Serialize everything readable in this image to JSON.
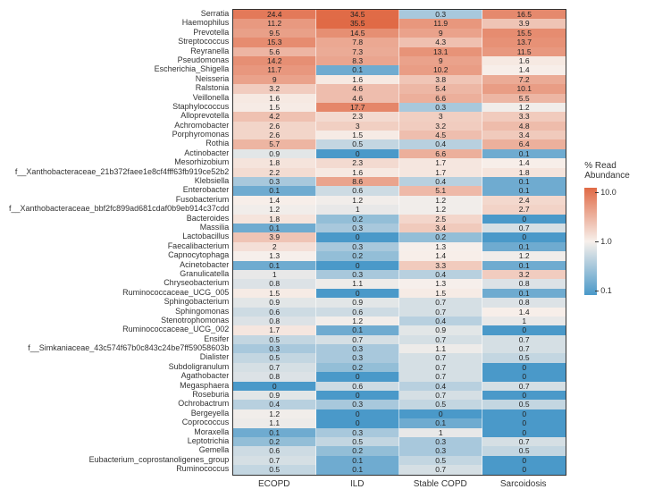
{
  "legend": {
    "title": "% Read\nAbundance",
    "ticks": [
      "10.0",
      "1.0",
      "0.1"
    ],
    "color_high": "#e06a46",
    "color_mid": "#f7f0eb",
    "color_low": "#4a99c9"
  },
  "columns": [
    "ECOPD",
    "ILD",
    "Stable COPD",
    "Sarcoidosis"
  ],
  "scale_log_min": 0.05,
  "scale_log_max": 35.5,
  "rows": [
    {
      "label": "Serratia",
      "v": [
        24.4,
        34.5,
        0.3,
        16.5
      ]
    },
    {
      "label": "Haemophilus",
      "v": [
        11.2,
        35.5,
        11.9,
        3.9
      ]
    },
    {
      "label": "Prevotella",
      "v": [
        9.5,
        14.5,
        9,
        15.5
      ]
    },
    {
      "label": "Streptococcus",
      "v": [
        15.3,
        7.8,
        4.3,
        13.7
      ]
    },
    {
      "label": "Reyranella",
      "v": [
        5.6,
        7.3,
        13.1,
        11.5
      ]
    },
    {
      "label": "Pseudomonas",
      "v": [
        14.2,
        8.3,
        9,
        1.6
      ]
    },
    {
      "label": "Escherichia_Shigella",
      "v": [
        11.7,
        0.1,
        10.2,
        1.4
      ]
    },
    {
      "label": "Neisseria",
      "v": [
        9,
        1.6,
        3.8,
        7.2
      ]
    },
    {
      "label": "Ralstonia",
      "v": [
        3.2,
        4.6,
        5.4,
        10.1
      ]
    },
    {
      "label": "Veillonella",
      "v": [
        1.6,
        4.6,
        6.6,
        5.5
      ]
    },
    {
      "label": "Staphylococcus",
      "v": [
        1.5,
        17.7,
        0.3,
        1.2
      ]
    },
    {
      "label": "Alloprevotella",
      "v": [
        4.2,
        2.3,
        3,
        3.3
      ]
    },
    {
      "label": "Achromobacter",
      "v": [
        2.6,
        3,
        3.2,
        4.8
      ]
    },
    {
      "label": "Porphyromonas",
      "v": [
        2.6,
        1.5,
        4.5,
        3.4
      ]
    },
    {
      "label": "Rothia",
      "v": [
        5.7,
        0.5,
        0.4,
        6.4
      ]
    },
    {
      "label": "Actinobacter",
      "v": [
        0.9,
        0,
        6.6,
        0.1
      ]
    },
    {
      "label": "Mesorhizobium",
      "v": [
        1.8,
        2.3,
        1.7,
        1.4
      ]
    },
    {
      "label": "f__Xanthobacteraceae_21b372faee1e8cf4fff63fb919ce52b2",
      "v": [
        2.2,
        1.6,
        1.7,
        1.8
      ]
    },
    {
      "label": "Klebsiella",
      "v": [
        0.3,
        8.6,
        0.4,
        0.1
      ]
    },
    {
      "label": "Enterobacter",
      "v": [
        0.1,
        0.6,
        5.1,
        0.1
      ]
    },
    {
      "label": "Fusobacterium",
      "v": [
        1.4,
        1.2,
        1.2,
        2.4
      ]
    },
    {
      "label": "f__Xanthobacteraceae_bbf2fc899ad681cdaf0b9eb914c37cdd",
      "v": [
        1.2,
        1,
        1.2,
        2.7
      ]
    },
    {
      "label": "Bacteroides",
      "v": [
        1.8,
        0.2,
        2.5,
        0
      ]
    },
    {
      "label": "Massilia",
      "v": [
        0.1,
        0.3,
        3.4,
        0.7
      ]
    },
    {
      "label": "Lactobacillus",
      "v": [
        3.9,
        0,
        0.2,
        0
      ]
    },
    {
      "label": "Faecalibacterium",
      "v": [
        2,
        0.3,
        1.3,
        0.1
      ]
    },
    {
      "label": "Capnocytophaga",
      "v": [
        1.3,
        0.2,
        1.4,
        1.2
      ]
    },
    {
      "label": "Acinetobacter",
      "v": [
        0.1,
        0,
        3.3,
        0.1
      ]
    },
    {
      "label": "Granulicatella",
      "v": [
        1,
        0.3,
        0.4,
        3.2
      ]
    },
    {
      "label": "Chryseobacterium",
      "v": [
        0.8,
        1.1,
        1.3,
        0.8
      ]
    },
    {
      "label": "Ruminococcaceae_UCG_005",
      "v": [
        1.5,
        0,
        1.5,
        0.1
      ]
    },
    {
      "label": "Sphingobacterium",
      "v": [
        0.9,
        0.9,
        0.7,
        0.8
      ]
    },
    {
      "label": "Sphingomonas",
      "v": [
        0.6,
        0.6,
        0.7,
        1.4
      ]
    },
    {
      "label": "Stenotrophomonas",
      "v": [
        0.8,
        1.2,
        0.4,
        1
      ]
    },
    {
      "label": "Ruminococcaceae_UCG_002",
      "v": [
        1.7,
        0.1,
        0.9,
        0
      ]
    },
    {
      "label": "Ensifer",
      "v": [
        0.5,
        0.7,
        0.7,
        0.7
      ]
    },
    {
      "label": "f__Simkaniaceae_43c574f67b0c843c24be7ff59058603b",
      "v": [
        0.3,
        0.3,
        1.1,
        0.7
      ]
    },
    {
      "label": "Dialister",
      "v": [
        0.5,
        0.3,
        0.7,
        0.5
      ]
    },
    {
      "label": "Subdoligranulum",
      "v": [
        0.7,
        0.2,
        0.7,
        0
      ]
    },
    {
      "label": "Agathobacter",
      "v": [
        0.8,
        0,
        0.7,
        0
      ]
    },
    {
      "label": "Megasphaera",
      "v": [
        0,
        0.6,
        0.4,
        0.7
      ]
    },
    {
      "label": "Roseburia",
      "v": [
        0.9,
        0,
        0.7,
        0
      ]
    },
    {
      "label": "Ochrobactrum",
      "v": [
        0.4,
        0.3,
        0.5,
        0.5
      ]
    },
    {
      "label": "Bergeyella",
      "v": [
        1.2,
        0,
        0,
        0
      ]
    },
    {
      "label": "Coprococcus",
      "v": [
        1.1,
        0,
        0.1,
        0
      ]
    },
    {
      "label": "Moraxella",
      "v": [
        0.1,
        0.3,
        1,
        0
      ]
    },
    {
      "label": "Leptotrichia",
      "v": [
        0.2,
        0.5,
        0.3,
        0.7
      ]
    },
    {
      "label": "Gemella",
      "v": [
        0.6,
        0.2,
        0.3,
        0.5
      ]
    },
    {
      "label": "Eubacterium_coprostanoligenes_group",
      "v": [
        0.7,
        0.1,
        0.5,
        0
      ]
    },
    {
      "label": "Ruminococcus",
      "v": [
        0.5,
        0.1,
        0.7,
        0
      ]
    }
  ]
}
